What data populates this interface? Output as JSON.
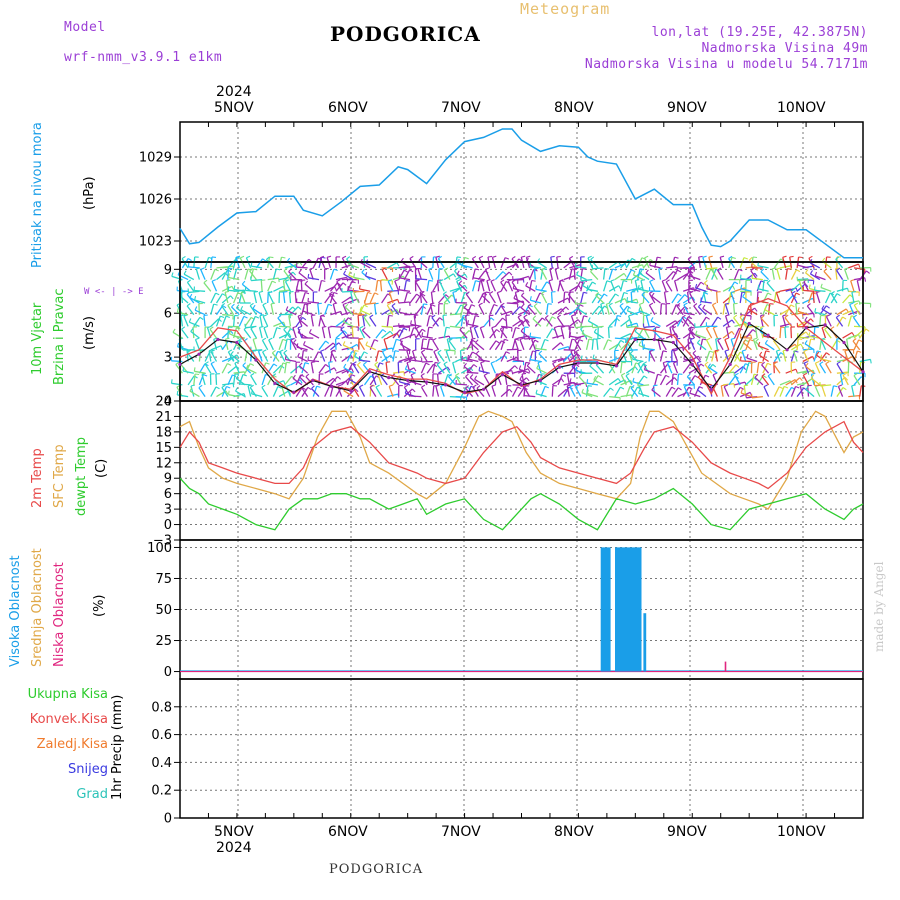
{
  "header": {
    "model_label": "Model",
    "model_name": "wrf-nmm_v3.9.1 e1km",
    "title": "PODGORICA",
    "meteogram": "Meteogram",
    "coords": "lon,lat (19.25E, 42.3875N)",
    "elevation": "Nadmorska Visina 49m",
    "model_elevation": "Nadmorska Visina u modelu 54.7171m"
  },
  "dates": [
    "5NOV",
    "6NOV",
    "7NOV",
    "8NOV",
    "9NOV",
    "10NOV"
  ],
  "year": "2024",
  "footer": {
    "station": "PODGORICA",
    "credit": "made by Angel"
  },
  "panels": {
    "pressure": {
      "label_a": "Pritisak na nivou mora",
      "unit": "(hPa)"
    },
    "wind": {
      "label_a": "10m Vjetar",
      "label_b": "Brzina i Pravac",
      "unit": "(m/s)",
      "compass": "W <- | -> E"
    },
    "temp": {
      "label_a": "2m Temp",
      "label_b": "SFC Temp",
      "label_c": "dewpt Temp",
      "unit": "(C)"
    },
    "cloud": {
      "label_a": "Visoka Oblacnost",
      "label_b": "Srednja Oblacnost",
      "label_c": "Niska Oblacnost",
      "unit": "(%)"
    },
    "precip": {
      "legend": [
        "Ukupna Kisa",
        "Konvek.Kisa",
        "Zaledj.Kisa",
        "Snijeg",
        "Grad"
      ],
      "unit": "1hr Precip (mm)"
    }
  },
  "colors": {
    "pressure": "#1a9ee8",
    "t2m": "#e84a4a",
    "tsfc": "#e0a848",
    "dewpt": "#2ecc2e",
    "wind_speed": "#e84a4a",
    "wind_mean": "#111111",
    "wind_purple": "#9c27b0",
    "cloud_high": "#1a9ee8",
    "cloud_low": "#e0267f",
    "leg_ukupna": "#2ecc2e",
    "leg_konvek": "#e84a4a",
    "leg_zaledj": "#f07b2d",
    "leg_snijeg": "#3a3ae0",
    "leg_grad": "#2cc3b8"
  },
  "chart_data": [
    {
      "type": "line",
      "title": "Pritisak na nivou mora",
      "ylabel": "(hPa)",
      "ylim": [
        1021.5,
        1031.5
      ],
      "yticks": [
        1023,
        1026,
        1029
      ],
      "xlim": [
        0,
        144
      ],
      "grid": true,
      "series": [
        {
          "name": "Pritisak na nivou mora",
          "x": [
            0,
            2,
            4,
            8,
            12,
            16,
            20,
            24,
            26,
            30,
            34,
            38,
            42,
            46,
            48,
            52,
            56,
            60,
            64,
            68,
            70,
            72,
            76,
            80,
            84,
            86,
            88,
            92,
            96,
            100,
            104,
            108,
            110,
            112,
            114,
            116,
            120,
            124,
            128,
            132,
            136,
            140,
            144
          ],
          "values": [
            1023.9,
            1022.8,
            1022.9,
            1024.0,
            1025.0,
            1025.1,
            1026.2,
            1026.2,
            1025.2,
            1024.8,
            1025.8,
            1026.9,
            1027.0,
            1028.3,
            1028.1,
            1027.1,
            1028.8,
            1030.1,
            1030.4,
            1031.0,
            1031.0,
            1030.2,
            1029.4,
            1029.8,
            1029.7,
            1029.0,
            1028.7,
            1028.5,
            1026.0,
            1026.7,
            1025.6,
            1025.6,
            1024.0,
            1022.7,
            1022.6,
            1023.0,
            1024.5,
            1024.5,
            1023.8,
            1023.8,
            1022.8,
            1021.8,
            1021.8
          ]
        }
      ]
    },
    {
      "type": "line",
      "title": "10m Vjetar Brzina i Pravac",
      "ylabel": "(m/s)",
      "ylim": [
        0,
        9.5
      ],
      "yticks": [
        0,
        3,
        6,
        9
      ],
      "xlim": [
        0,
        144
      ],
      "grid": true,
      "series": [
        {
          "name": "speed",
          "x": [
            0,
            4,
            8,
            12,
            16,
            20,
            24,
            28,
            32,
            36,
            40,
            44,
            48,
            52,
            56,
            60,
            64,
            68,
            72,
            76,
            80,
            84,
            88,
            92,
            96,
            100,
            104,
            108,
            112,
            116,
            120,
            124,
            128,
            132,
            136,
            140,
            144
          ],
          "values": [
            3.0,
            3.5,
            5.0,
            4.8,
            3.0,
            1.5,
            0.5,
            1.5,
            1.0,
            0.8,
            2.2,
            1.8,
            1.5,
            1.5,
            1.2,
            0.5,
            0.8,
            2.0,
            1.0,
            1.5,
            2.5,
            2.8,
            2.8,
            2.5,
            5.0,
            4.8,
            4.5,
            3.0,
            0.5,
            3.0,
            6.5,
            7.0,
            6.5,
            5.0,
            4.0,
            3.0,
            2.0
          ]
        },
        {
          "name": "mean",
          "x": [
            0,
            4,
            8,
            12,
            16,
            20,
            24,
            28,
            32,
            36,
            40,
            44,
            48,
            52,
            56,
            60,
            64,
            68,
            72,
            76,
            80,
            84,
            88,
            92,
            96,
            100,
            104,
            108,
            112,
            116,
            120,
            124,
            128,
            132,
            136,
            140,
            144
          ],
          "values": [
            2.5,
            3.2,
            4.2,
            4.0,
            2.8,
            1.2,
            0.6,
            1.4,
            1.0,
            0.7,
            2.0,
            1.6,
            1.4,
            1.3,
            1.1,
            0.6,
            0.8,
            1.8,
            1.1,
            1.4,
            2.3,
            2.6,
            2.6,
            2.4,
            4.2,
            4.2,
            4.0,
            2.5,
            0.8,
            2.5,
            5.3,
            4.5,
            3.5,
            5.0,
            5.2,
            4.0,
            2.0
          ]
        }
      ]
    },
    {
      "type": "line",
      "title": "2m Temp / SFC Temp / dewpt Temp",
      "ylabel": "(C)",
      "ylim": [
        -3,
        24
      ],
      "yticks": [
        -3,
        0,
        3,
        6,
        9,
        12,
        15,
        18,
        21,
        24
      ],
      "xlim": [
        0,
        144
      ],
      "grid": true,
      "series": [
        {
          "name": "2m Temp",
          "x": [
            0,
            2,
            4,
            6,
            9,
            12,
            16,
            20,
            23,
            26,
            28,
            32,
            36,
            40,
            44,
            47,
            50,
            52,
            56,
            60,
            64,
            68,
            71,
            74,
            76,
            80,
            84,
            88,
            92,
            95,
            98,
            100,
            104,
            108,
            112,
            116,
            119,
            122,
            124,
            128,
            132,
            136,
            140,
            142,
            144
          ],
          "values": [
            15,
            18,
            16,
            12,
            11,
            10,
            9,
            8,
            8,
            11,
            15,
            18,
            19,
            16,
            12,
            11,
            10,
            9,
            8,
            9,
            14,
            18,
            19,
            16,
            13,
            11,
            10,
            9,
            8,
            10,
            15,
            18,
            19,
            16,
            12,
            10,
            9,
            8,
            7,
            10,
            15,
            18,
            20,
            16,
            14
          ]
        },
        {
          "name": "SFC Temp",
          "x": [
            0,
            2,
            4,
            6,
            9,
            12,
            16,
            20,
            23,
            26,
            29,
            32,
            35,
            38,
            40,
            44,
            47,
            50,
            52,
            56,
            60,
            63,
            65,
            68,
            70,
            73,
            76,
            80,
            84,
            88,
            92,
            95,
            97,
            99,
            101,
            104,
            107,
            110,
            113,
            116,
            119,
            122,
            124,
            128,
            131,
            134,
            136,
            140,
            142,
            144
          ],
          "values": [
            19,
            20,
            15,
            11,
            9,
            8,
            7,
            6,
            5,
            9,
            17,
            22,
            22,
            17,
            12,
            10,
            8,
            6,
            5,
            8,
            15,
            21,
            22,
            21,
            20,
            14,
            10,
            8,
            7,
            6,
            5,
            8,
            17,
            22,
            22,
            20,
            15,
            10,
            8,
            6,
            5,
            4,
            3,
            9,
            18,
            22,
            21,
            14,
            17,
            18
          ]
        },
        {
          "name": "dewpt Temp",
          "x": [
            0,
            2,
            4,
            6,
            9,
            12,
            16,
            20,
            23,
            26,
            29,
            32,
            35,
            38,
            40,
            44,
            47,
            50,
            52,
            56,
            60,
            64,
            68,
            72,
            74,
            76,
            80,
            84,
            88,
            92,
            96,
            100,
            104,
            108,
            112,
            116,
            120,
            124,
            128,
            132,
            136,
            140,
            142,
            144
          ],
          "values": [
            9,
            7,
            6,
            4,
            3,
            2,
            0,
            -1,
            3,
            5,
            5,
            6,
            6,
            5,
            5,
            3,
            4,
            5,
            2,
            4,
            5,
            1,
            -1,
            3,
            5,
            6,
            4,
            1,
            -1,
            5,
            4,
            5,
            7,
            4,
            0,
            -1,
            3,
            4,
            5,
            6,
            3,
            1,
            3,
            4
          ]
        }
      ]
    },
    {
      "type": "bar",
      "title": "Oblacnost",
      "ylabel": "(%)",
      "ylim": [
        -6,
        106
      ],
      "yticks": [
        0,
        25,
        50,
        75,
        100
      ],
      "xlim": [
        0,
        144
      ],
      "grid": true,
      "series": [
        {
          "name": "Visoka Oblacnost",
          "x": [
            89.0,
            89.5,
            90.0,
            90.5,
            92.0,
            92.5,
            93.0,
            93.5,
            94.0,
            94.5,
            95.0,
            95.5,
            96.0,
            96.5,
            97.0,
            98.0
          ],
          "values": [
            100,
            100,
            100,
            100,
            100,
            100,
            100,
            100,
            100,
            100,
            100,
            100,
            100,
            100,
            100,
            47
          ]
        },
        {
          "name": "Niska Oblacnost",
          "x": [
            115
          ],
          "values": [
            8
          ]
        }
      ]
    },
    {
      "type": "bar",
      "title": "1hr Precip",
      "ylabel": "1hr Precip (mm)",
      "ylim": [
        0,
        1.0
      ],
      "yticks": [
        0,
        0.2,
        0.4,
        0.6,
        0.8
      ],
      "xlim": [
        0,
        144
      ],
      "grid": true,
      "series": [
        {
          "name": "Ukupna Kisa",
          "x": [],
          "values": []
        }
      ]
    }
  ]
}
